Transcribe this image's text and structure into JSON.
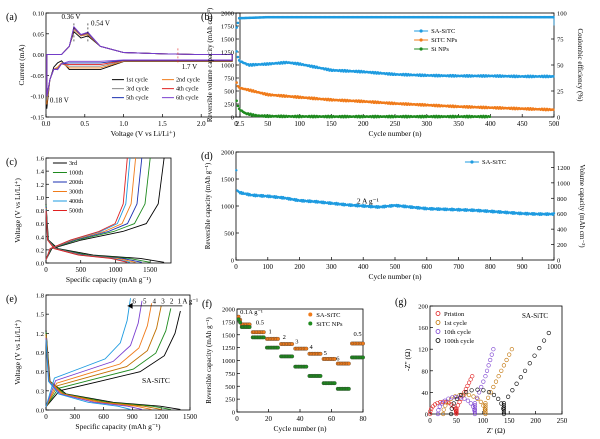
{
  "colors": {
    "blue": "#1e9be0",
    "orange": "#f07b1a",
    "green": "#1e8a1e",
    "black": "#000000",
    "darkblue": "#1a2fb0",
    "red": "#e02020",
    "purple": "#7a3fd0",
    "gray": "#888888",
    "lightgreen": "#6aa84f",
    "darkorange": "#c07000"
  },
  "chart_data": [
    {
      "id": "a",
      "type": "line",
      "panel_label": "(a)",
      "xlabel": "Voltage (V vs Li/Li⁺)",
      "ylabel": "Current (mA)",
      "xlim": [
        0,
        2.5
      ],
      "ylim": [
        -0.15,
        0.1
      ],
      "xticks": [
        "0.0",
        "0.5",
        "1.0",
        "1.5",
        "2.0",
        "2.5"
      ],
      "yticks": [
        "-0.15",
        "-0.10",
        "-0.05",
        "0.00",
        "0.05",
        "0.10"
      ],
      "annotations": [
        "0.36 V",
        "0.54 V",
        "1.7 V",
        "0.18 V"
      ],
      "legend": [
        "1st cycle",
        "2nd cycle",
        "3rd cycle",
        "4th cycle",
        "5th cycle",
        "6th cycle"
      ],
      "series": [
        {
          "name": "1st cycle",
          "x": [
            0.01,
            0.05,
            0.1,
            0.15,
            0.2,
            0.3,
            0.36,
            0.45,
            0.54,
            0.7,
            1.0,
            1.5,
            2.0,
            2.4
          ],
          "y": [
            -0.13,
            -0.06,
            -0.03,
            -0.02,
            -0.015,
            0.02,
            0.055,
            0.04,
            0.045,
            0.02,
            0.005,
            0.002,
            0.0,
            0.0
          ]
        },
        {
          "name": "2nd cycle",
          "x": [
            0.01,
            0.05,
            0.1,
            0.15,
            0.2,
            0.3,
            0.36,
            0.45,
            0.54,
            0.7,
            1.0,
            1.5,
            2.0,
            2.4
          ],
          "y": [
            -0.12,
            -0.06,
            -0.035,
            -0.03,
            -0.02,
            0.02,
            0.06,
            0.045,
            0.048,
            0.02,
            0.005,
            0.002,
            0.0,
            0.0
          ]
        },
        {
          "name": "3rd cycle",
          "x": [
            0.01,
            0.05,
            0.1,
            0.15,
            0.2,
            0.3,
            0.36,
            0.45,
            0.54,
            0.7,
            1.0,
            1.5,
            2.0,
            2.4
          ],
          "y": [
            -0.11,
            -0.06,
            -0.035,
            -0.033,
            -0.022,
            0.02,
            0.062,
            0.046,
            0.05,
            0.02,
            0.005,
            0.002,
            0.0,
            0.0
          ]
        },
        {
          "name": "4th cycle",
          "x": [
            0.01,
            0.05,
            0.1,
            0.15,
            0.2,
            0.3,
            0.36,
            0.45,
            0.54,
            0.7,
            1.0,
            1.5,
            2.0,
            2.4
          ],
          "y": [
            -0.1,
            -0.06,
            -0.035,
            -0.035,
            -0.022,
            0.02,
            0.065,
            0.047,
            0.052,
            0.02,
            0.005,
            0.002,
            0.0,
            0.0
          ]
        },
        {
          "name": "5th cycle",
          "x": [
            0.01,
            0.05,
            0.1,
            0.15,
            0.2,
            0.3,
            0.36,
            0.45,
            0.54,
            0.7,
            1.0,
            1.5,
            2.0,
            2.4
          ],
          "y": [
            -0.1,
            -0.06,
            -0.035,
            -0.036,
            -0.022,
            0.02,
            0.066,
            0.048,
            0.053,
            0.02,
            0.005,
            0.002,
            0.0,
            0.0
          ]
        },
        {
          "name": "6th cycle",
          "x": [
            0.01,
            0.05,
            0.1,
            0.15,
            0.2,
            0.3,
            0.36,
            0.45,
            0.54,
            0.7,
            1.0,
            1.5,
            2.0,
            2.4
          ],
          "y": [
            -0.1,
            -0.06,
            -0.035,
            -0.036,
            -0.022,
            0.02,
            0.067,
            0.048,
            0.054,
            0.02,
            0.005,
            0.002,
            0.0,
            0.0
          ]
        }
      ]
    },
    {
      "id": "b",
      "type": "scatter",
      "panel_label": "(b)",
      "xlabel": "Cycle number (n)",
      "ylabel": "Reversible volume capacity (mAh cm⁻³)",
      "y2label": "Coulombic efficiency (%)",
      "xlim": [
        0,
        500
      ],
      "ylim": [
        0,
        2000
      ],
      "y2lim": [
        0,
        100
      ],
      "xticks": [
        "0",
        "50",
        "100",
        "150",
        "200",
        "250",
        "300",
        "350",
        "400",
        "450",
        "500"
      ],
      "yticks": [
        "0",
        "250",
        "500",
        "750",
        "1000",
        "1250",
        "1500",
        "1750",
        "2000"
      ],
      "y2ticks": [
        "0",
        "25",
        "50",
        "75",
        "100"
      ],
      "legend": [
        "SA-SiTC",
        "SiTC NPs",
        "Si NPs"
      ],
      "series": [
        {
          "name": "SA-SiTC",
          "x": [
            1,
            5,
            20,
            50,
            80,
            100,
            150,
            200,
            250,
            300,
            350,
            400,
            450,
            500
          ],
          "y": [
            1250,
            1080,
            1000,
            1020,
            1050,
            1020,
            900,
            870,
            820,
            800,
            790,
            790,
            780,
            780
          ]
        },
        {
          "name": "SiTC NPs",
          "x": [
            1,
            5,
            20,
            50,
            100,
            150,
            200,
            250,
            300,
            350,
            400,
            450,
            500
          ],
          "y": [
            650,
            560,
            520,
            430,
            380,
            330,
            300,
            260,
            230,
            200,
            180,
            160,
            140
          ]
        },
        {
          "name": "Si NPs",
          "x": [
            1,
            5,
            15,
            30,
            50,
            100,
            150,
            200,
            300,
            400
          ],
          "y": [
            300,
            150,
            70,
            30,
            15,
            10,
            8,
            8,
            8,
            8
          ]
        },
        {
          "name": "SA-SiTC CE",
          "axis": "y2",
          "x": [
            1,
            5,
            50,
            100,
            200,
            300,
            400,
            500
          ],
          "y": [
            86,
            95,
            96,
            96,
            96,
            96,
            96,
            96
          ]
        }
      ]
    },
    {
      "id": "c",
      "type": "line",
      "panel_label": "(c)",
      "xlabel": "Specific capacity (mAh g⁻¹)",
      "ylabel": "Voltage (V vs Li/Li⁺)",
      "xlim": [
        0,
        1800
      ],
      "ylim": [
        0,
        1.6
      ],
      "xticks": [
        "0",
        "500",
        "1000",
        "1500"
      ],
      "yticks": [
        "0.0",
        "0.2",
        "0.4",
        "0.6",
        "0.8",
        "1.0",
        "1.2",
        "1.4",
        "1.6"
      ],
      "legend": [
        "3rd",
        "100th",
        "200th",
        "300th",
        "400th",
        "500th"
      ],
      "series": [
        {
          "name": "3rd",
          "cap": 1700
        },
        {
          "name": "100th",
          "cap": 1500
        },
        {
          "name": "200th",
          "cap": 1380
        },
        {
          "name": "300th",
          "cap": 1290
        },
        {
          "name": "400th",
          "cap": 1210
        },
        {
          "name": "500th",
          "cap": 1170
        }
      ]
    },
    {
      "id": "d",
      "type": "scatter",
      "panel_label": "(d)",
      "xlabel": "Cycle number (n)",
      "ylabel": "Reversible capacity (mAh g⁻¹)",
      "y2label": "Volume capacity (mAh cm⁻³)",
      "xlim": [
        0,
        1000
      ],
      "ylim": [
        0,
        2000
      ],
      "y2lim": [
        0,
        1400
      ],
      "xticks": [
        "0",
        "100",
        "200",
        "300",
        "400",
        "500",
        "600",
        "700",
        "800",
        "900",
        "1000"
      ],
      "yticks": [
        "0",
        "500",
        "1000",
        "1500",
        "2000"
      ],
      "y2ticks": [
        "0",
        "200",
        "400",
        "600",
        "800",
        "1000",
        "1200"
      ],
      "legend": [
        "SA-SiTC"
      ],
      "annotation": "2 A g⁻¹",
      "series": [
        {
          "name": "SA-SiTC",
          "x": [
            1,
            3,
            10,
            50,
            100,
            150,
            200,
            250,
            300,
            350,
            400,
            450,
            500,
            550,
            600,
            650,
            700,
            750,
            800,
            850,
            900,
            950,
            1000
          ],
          "y": [
            1650,
            1300,
            1250,
            1200,
            1180,
            1150,
            1100,
            1080,
            1050,
            1020,
            1000,
            980,
            1010,
            980,
            950,
            940,
            930,
            920,
            900,
            880,
            860,
            850,
            850
          ]
        }
      ]
    },
    {
      "id": "e",
      "type": "line",
      "panel_label": "(e)",
      "xlabel": "Specific capacity (mAh g⁻¹)",
      "ylabel": "Voltage (V vs Li/Li⁺)",
      "xlim": [
        0,
        1500
      ],
      "ylim": [
        0,
        1.8
      ],
      "xticks": [
        "0",
        "300",
        "600",
        "900",
        "1200",
        "1500"
      ],
      "yticks": [
        "0.0",
        "0.3",
        "0.6",
        "0.9",
        "1.2",
        "1.5",
        "1.8"
      ],
      "rate_labels": [
        "6",
        "5",
        "4",
        "3",
        "2",
        "1 A g⁻¹"
      ],
      "sample_label": "SA-SiTC",
      "series": [
        {
          "name": "1",
          "cap": 1400
        },
        {
          "name": "2",
          "cap": 1300
        },
        {
          "name": "3",
          "cap": 1200
        },
        {
          "name": "4",
          "cap": 1100
        },
        {
          "name": "5",
          "cap": 1000
        },
        {
          "name": "6",
          "cap": 880
        }
      ]
    },
    {
      "id": "f",
      "type": "scatter",
      "panel_label": "(f)",
      "xlabel": "Cycle number (n)",
      "ylabel": "Reversible capacity (mAh g⁻¹)",
      "xlim": [
        0,
        80
      ],
      "ylim": [
        0,
        2000
      ],
      "xticks": [
        "0",
        "20",
        "40",
        "60",
        "80"
      ],
      "yticks": [
        "0",
        "250",
        "500",
        "750",
        "1000",
        "1250",
        "1500",
        "1750",
        "2000"
      ],
      "legend": [
        "SA-SiTC",
        "SiTC NPs"
      ],
      "rate_labels": [
        "0.1A g⁻¹",
        "0.5",
        "1",
        "2",
        "3",
        "4",
        "5",
        "6",
        "0.5"
      ],
      "steps": {
        "SA-SiTC": [
          1700,
          1550,
          1420,
          1320,
          1230,
          1130,
          1030,
          940,
          1330
        ],
        "SiTC NPs": [
          1650,
          1450,
          1250,
          1080,
          880,
          700,
          560,
          450,
          1060
        ]
      }
    },
    {
      "id": "g",
      "type": "scatter",
      "panel_label": "(g)",
      "xlabel": "Z' (Ω)",
      "ylabel": "-Z'' (Ω)",
      "xlim": [
        0,
        250
      ],
      "ylim": [
        0,
        200
      ],
      "xticks": [
        "0",
        "50",
        "100",
        "150",
        "200",
        "250"
      ],
      "yticks": [
        "0",
        "40",
        "80",
        "120",
        "160",
        "200"
      ],
      "sample_label": "SA-SiTC",
      "legend": [
        "Pristion",
        "1st cycle",
        "10th cycle",
        "100th cycle"
      ],
      "series": [
        {
          "name": "Pristion",
          "center": 25,
          "radius": 25,
          "tail_x": [
            50,
            65,
            80
          ],
          "tail_y": [
            10,
            40,
            70
          ]
        },
        {
          "name": "1st cycle",
          "center": 65,
          "radius": 40,
          "tail_x": [
            105,
            130,
            155
          ],
          "tail_y": [
            20,
            70,
            120
          ]
        },
        {
          "name": "10th cycle",
          "center": 50,
          "radius": 35,
          "tail_x": [
            85,
            105,
            120
          ],
          "tail_y": [
            20,
            70,
            120
          ]
        },
        {
          "name": "100th cycle",
          "center": 90,
          "radius": 50,
          "tail_x": [
            140,
            180,
            225
          ],
          "tail_y": [
            20,
            80,
            150
          ]
        }
      ]
    }
  ]
}
